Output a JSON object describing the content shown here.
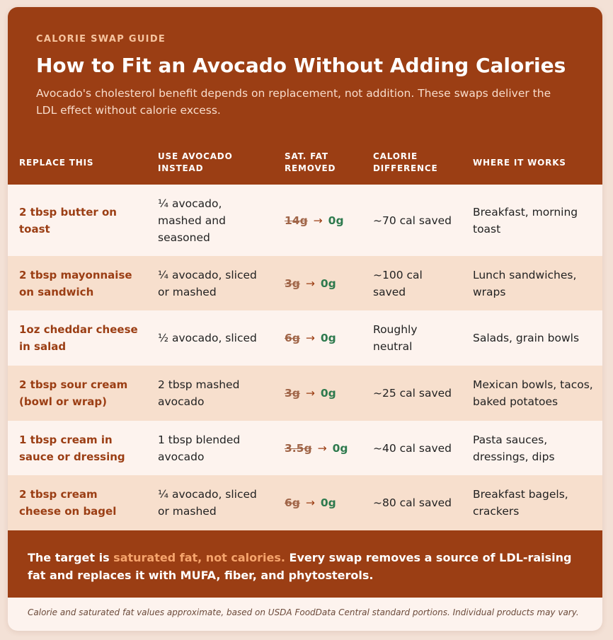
{
  "header": {
    "eyebrow": "CALORIE SWAP GUIDE",
    "title": "How to Fit an Avocado Without Adding Calories",
    "subtitle": "Avocado's cholesterol benefit depends on replacement, not addition. These swaps deliver the LDL effect without calorie excess."
  },
  "table": {
    "columns": [
      "REPLACE THIS",
      "USE AVOCADO INSTEAD",
      "SAT. FAT REMOVED",
      "CALORIE DIFFERENCE",
      "WHERE IT WORKS"
    ],
    "rows": [
      {
        "replace": "2 tbsp butter on toast",
        "avocado": "¼ avocado, mashed and seasoned",
        "fat_from": "14g",
        "fat_to": "0g",
        "calories": "~70 cal saved",
        "where": "Breakfast, morning toast"
      },
      {
        "replace": "2 tbsp mayonnaise on sandwich",
        "avocado": "¼ avocado, sliced or mashed",
        "fat_from": "3g",
        "fat_to": "0g",
        "calories": "~100 cal saved",
        "where": "Lunch sandwiches, wraps"
      },
      {
        "replace": "1oz cheddar cheese in salad",
        "avocado": "½ avocado, sliced",
        "fat_from": "6g",
        "fat_to": "0g",
        "calories": "Roughly neutral",
        "where": "Salads, grain bowls"
      },
      {
        "replace": "2 tbsp sour cream (bowl or wrap)",
        "avocado": "2 tbsp mashed avocado",
        "fat_from": "3g",
        "fat_to": "0g",
        "calories": "~25 cal saved",
        "where": "Mexican bowls, tacos, baked potatoes"
      },
      {
        "replace": "1 tbsp cream in sauce or dressing",
        "avocado": "1 tbsp blended avocado",
        "fat_from": "3.5g",
        "fat_to": "0g",
        "calories": "~40 cal saved",
        "where": "Pasta sauces, dressings, dips"
      },
      {
        "replace": "2 tbsp cream cheese on bagel",
        "avocado": "¼ avocado, sliced or mashed",
        "fat_from": "6g",
        "fat_to": "0g",
        "calories": "~80 cal saved",
        "where": "Breakfast bagels, crackers"
      }
    ],
    "arrow": "→"
  },
  "footer": {
    "text_before": "The target is ",
    "highlight": "saturated fat, not calories.",
    "text_after": " Every swap removes a source of LDL-raising fat and replaces it with MUFA, fiber, and phytosterols."
  },
  "note": "Calorie and saturated fat values approximate, based on USDA FoodData Central standard portions. Individual products may vary.",
  "colors": {
    "brand": "#9b3e14",
    "accent": "#f6a46c",
    "saved_green": "#2e7a4e",
    "row_alt": "#f7dfcd"
  }
}
